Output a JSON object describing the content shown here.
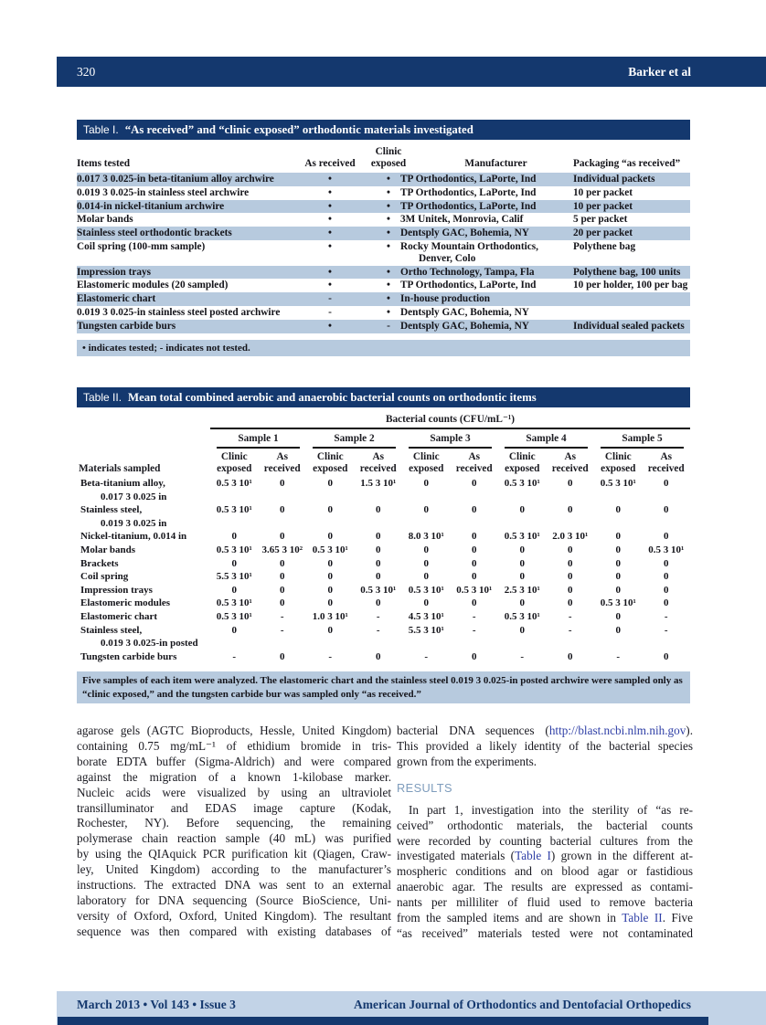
{
  "colors": {
    "navy_bar": "#14386e",
    "row_shade_blue": "#b7cade",
    "footer_blue": "#c2d3e7",
    "link_blue": "#2f3fa6",
    "results_heading_blue": "#7e9cbc"
  },
  "header": {
    "page_number": "320",
    "running_author": "Barker et al"
  },
  "footer": {
    "issue_info": "March 2013 • Vol 143 • Issue 3",
    "journal_name": "American Journal of Orthodontics and Dentofacial Orthopedics"
  },
  "table1": {
    "title_label": "Table I.",
    "title": "“As received” and “clinic exposed” orthodontic materials investigated",
    "col_items": "Items tested",
    "col_as_received": "As received",
    "col_clinic_exposed": "Clinic exposed",
    "col_manufacturer": "Manufacturer",
    "col_packaging": "Packaging “as received”",
    "rows": [
      {
        "item": "0.017 3 0.025-in beta-titanium alloy archwire",
        "as_received": "•",
        "clinic_exposed": "•",
        "manufacturer": "TP Orthodontics, LaPorte, Ind",
        "packaging": "Individual packets"
      },
      {
        "item": "0.019 3 0.025-in stainless steel archwire",
        "as_received": "•",
        "clinic_exposed": "•",
        "manufacturer": "TP Orthodontics, LaPorte, Ind",
        "packaging": "10 per packet"
      },
      {
        "item": "0.014-in nickel-titanium archwire",
        "as_received": "•",
        "clinic_exposed": "•",
        "manufacturer": "TP Orthodontics, LaPorte, Ind",
        "packaging": "10 per packet"
      },
      {
        "item": "Molar bands",
        "as_received": "•",
        "clinic_exposed": "•",
        "manufacturer": "3M Unitek, Monrovia, Calif",
        "packaging": "5 per packet"
      },
      {
        "item": "Stainless steel orthodontic brackets",
        "as_received": "•",
        "clinic_exposed": "•",
        "manufacturer": "Dentsply GAC, Bohemia, NY",
        "packaging": "20 per packet"
      },
      {
        "item": "Coil spring (100-mm sample)",
        "as_received": "•",
        "clinic_exposed": "•",
        "manufacturer": "Rocky Mountain Orthodontics, Denver, Colo",
        "packaging": "Polythene bag"
      },
      {
        "item": "Impression trays",
        "as_received": "•",
        "clinic_exposed": "•",
        "manufacturer": "Ortho Technology, Tampa, Fla",
        "packaging": "Polythene bag, 100 units"
      },
      {
        "item": "Elastomeric modules (20 sampled)",
        "as_received": "•",
        "clinic_exposed": "•",
        "manufacturer": "TP Orthodontics, LaPorte, Ind",
        "packaging": "10 per holder, 100 per bag"
      },
      {
        "item": "Elastomeric chart",
        "as_received": "-",
        "clinic_exposed": "•",
        "manufacturer": "In-house production",
        "packaging": ""
      },
      {
        "item": "0.019 3 0.025-in stainless steel posted archwire",
        "as_received": "-",
        "clinic_exposed": "•",
        "manufacturer": "Dentsply GAC, Bohemia, NY",
        "packaging": ""
      },
      {
        "item": "Tungsten carbide burs",
        "as_received": "•",
        "clinic_exposed": "-",
        "manufacturer": "Dentsply GAC, Bohemia, NY",
        "packaging": "Individual sealed packets"
      }
    ],
    "footnote": "• indicates tested; - indicates not tested."
  },
  "table2": {
    "title_label": "Table II.",
    "title": "Mean total combined aerobic and anaerobic bacterial counts on orthodontic items",
    "spanner": "Bacterial counts (CFU/mL⁻¹)",
    "materials_label": "Materials sampled",
    "samples": [
      "Sample 1",
      "Sample 2",
      "Sample 3",
      "Sample 4",
      "Sample 5"
    ],
    "sub_clinic": "Clinic exposed",
    "sub_as": "As received",
    "rows": [
      {
        "material": "Beta-titanium alloy,",
        "material_cont": "0.017 3 0.025 in",
        "values": [
          "0.5 3 10¹",
          "0",
          "0",
          "1.5 3 10¹",
          "0",
          "0",
          "0.5 3 10¹",
          "0",
          "0.5 3 10¹",
          "0"
        ]
      },
      {
        "material": "Stainless steel,",
        "material_cont": "0.019 3 0.025 in",
        "values": [
          "0.5 3 10¹",
          "0",
          "0",
          "0",
          "0",
          "0",
          "0",
          "0",
          "0",
          "0"
        ]
      },
      {
        "material": "Nickel-titanium, 0.014 in",
        "values": [
          "0",
          "0",
          "0",
          "0",
          "8.0 3 10¹",
          "0",
          "0.5 3 10¹",
          "2.0 3 10¹",
          "0",
          "0"
        ]
      },
      {
        "material": "Molar bands",
        "values": [
          "0.5 3 10¹",
          "3.65 3 10²",
          "0.5 3 10¹",
          "0",
          "0",
          "0",
          "0",
          "0",
          "0",
          "0.5 3 10¹"
        ]
      },
      {
        "material": "Brackets",
        "values": [
          "0",
          "0",
          "0",
          "0",
          "0",
          "0",
          "0",
          "0",
          "0",
          "0"
        ]
      },
      {
        "material": "Coil spring",
        "values": [
          "5.5 3 10¹",
          "0",
          "0",
          "0",
          "0",
          "0",
          "0",
          "0",
          "0",
          "0"
        ]
      },
      {
        "material": "Impression trays",
        "values": [
          "0",
          "0",
          "0",
          "0.5 3 10¹",
          "0.5 3 10¹",
          "0.5 3 10¹",
          "2.5 3 10¹",
          "0",
          "0",
          "0"
        ]
      },
      {
        "material": "Elastomeric modules",
        "values": [
          "0.5 3 10¹",
          "0",
          "0",
          "0",
          "0",
          "0",
          "0",
          "0",
          "0.5 3 10¹",
          "0"
        ]
      },
      {
        "material": "Elastomeric chart",
        "values": [
          "0.5 3 10¹",
          "-",
          "1.0 3 10¹",
          "-",
          "4.5 3 10¹",
          "-",
          "0.5 3 10¹",
          "-",
          "0",
          "-"
        ]
      },
      {
        "material": "Stainless steel,",
        "material_cont": "0.019 3 0.025-in posted",
        "values": [
          "0",
          "-",
          "0",
          "-",
          "5.5 3 10¹",
          "-",
          "0",
          "-",
          "0",
          "-"
        ]
      },
      {
        "material": "Tungsten carbide burs",
        "values": [
          "-",
          "0",
          "-",
          "0",
          "-",
          "0",
          "-",
          "0",
          "-",
          "0"
        ]
      }
    ],
    "footnote": "Five samples of each item were analyzed. The elastomeric chart and the stainless steel 0.019 3 0.025-in posted archwire were sampled only as “clinic exposed,” and the tungsten carbide bur was sampled only “as received.”"
  },
  "body": {
    "results_heading": "RESULTS",
    "left_lines": [
      "agarose gels (AGTC Bioproducts, Hessle, United Kingdom)",
      "containing 0.75 mg/mL⁻¹ of ethidium bromide in tris-",
      "borate EDTA buffer (Sigma-Aldrich) and were compared",
      "against the migration of a known 1-kilobase marker.",
      "Nucleic acids were visualized by using an ultraviolet",
      "transilluminator and EDAS image capture (Kodak,",
      "Rochester, NY). Before sequencing, the remaining",
      "polymerase chain reaction sample (40 mL) was purified",
      "by using the QIAquick PCR purification kit (Qiagen, Craw-",
      "ley, United Kingdom) according to the manufacturer’s",
      "instructions. The extracted DNA was sent to an external",
      "laboratory for DNA sequencing (Source BioScience, Uni-",
      "versity of Oxford, Oxford, United Kingdom). The resultant",
      "sequence was then compared with existing databases of"
    ],
    "right_para1": [
      {
        "segs": [
          {
            "t": "bacterial DNA sequences ("
          },
          {
            "t": "http://blast.ncbi.nlm.nih.gov",
            "link": true
          },
          {
            "t": ")."
          }
        ]
      },
      "This provided a likely identity of the bacterial species",
      {
        "segs": [
          {
            "t": "grown from the experiments."
          }
        ],
        "end": true
      }
    ],
    "right_para2": [
      {
        "segs": [
          {
            "t": "In part 1, investigation into the sterility of “as re-"
          }
        ],
        "indent": true
      },
      "ceived” orthodontic materials, the bacterial counts",
      "were recorded by counting bacterial cultures from the",
      {
        "segs": [
          {
            "t": "investigated materials ("
          },
          {
            "t": "Table I",
            "link": true
          },
          {
            "t": ") grown in the different at-"
          }
        ]
      },
      "mospheric conditions and on blood agar or fastidious",
      "anaerobic agar. The results are expressed as contami-",
      "nants per milliliter of fluid used to remove bacteria",
      {
        "segs": [
          {
            "t": "from the sampled items and are shown in "
          },
          {
            "t": "Table II",
            "link": true
          },
          {
            "t": ". Five"
          }
        ]
      },
      "“as received” materials tested were not contaminated"
    ]
  }
}
